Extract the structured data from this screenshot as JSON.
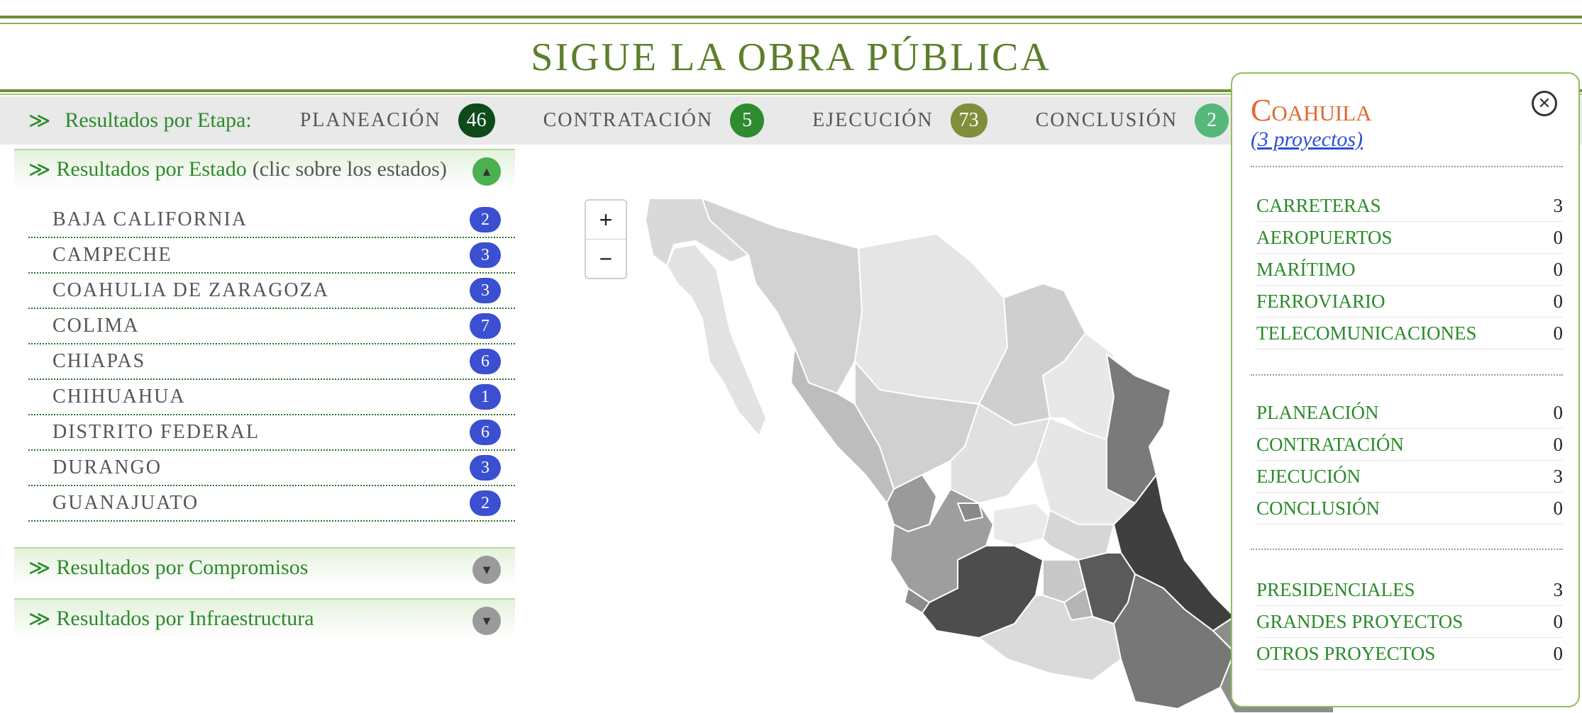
{
  "header": {
    "title": "Sigue la Obra Pública"
  },
  "stages": {
    "arrow": "≫",
    "title": "Resultados por Etapa:",
    "items": [
      {
        "label": "Planeación",
        "count": "46",
        "color": "#0e4a1a"
      },
      {
        "label": "Contratación",
        "count": "5",
        "color": "#2e8b2e"
      },
      {
        "label": "Ejecución",
        "count": "73",
        "color": "#7f8f3c"
      },
      {
        "label": "Conclusión",
        "count": "2",
        "color": "#55b77a"
      }
    ]
  },
  "left_panel": {
    "by_state": {
      "arrow": "≫",
      "title": "Resultados por Estado",
      "hint": "(clic sobre los estados)",
      "states": [
        {
          "name": "Baja California",
          "count": "2"
        },
        {
          "name": "Campeche",
          "count": "3"
        },
        {
          "name": "Coahulia de Zaragoza",
          "count": "3"
        },
        {
          "name": "Colima",
          "count": "7"
        },
        {
          "name": "Chiapas",
          "count": "6"
        },
        {
          "name": "Chihuahua",
          "count": "1"
        },
        {
          "name": "Distrito Federal",
          "count": "6"
        },
        {
          "name": "Durango",
          "count": "3"
        },
        {
          "name": "Guanajuato",
          "count": "2"
        }
      ]
    },
    "by_commitments": {
      "arrow": "≫",
      "title": "Resultados por Compromisos"
    },
    "by_infrastructure": {
      "arrow": "≫",
      "title": "Resultados por Infraestructura"
    }
  },
  "map_controls": {
    "zoom_in": "+",
    "zoom_out": "−"
  },
  "popup": {
    "title": "Coahuila",
    "link": "(3 proyectos)",
    "close_symbol": "✕",
    "sectors": [
      {
        "label": "Carreteras",
        "value": "3"
      },
      {
        "label": "Aeropuertos",
        "value": "0"
      },
      {
        "label": "Marítimo",
        "value": "0"
      },
      {
        "label": "Ferroviario",
        "value": "0"
      },
      {
        "label": "Telecomunicaciones",
        "value": "0"
      }
    ],
    "stages": [
      {
        "label": "Planeación",
        "value": "0"
      },
      {
        "label": "Contratación",
        "value": "0"
      },
      {
        "label": "Ejecución",
        "value": "3"
      },
      {
        "label": "Conclusión",
        "value": "0"
      }
    ],
    "types": [
      {
        "label": "Presidenciales",
        "value": "3"
      },
      {
        "label": "Grandes Proyectos",
        "value": "0"
      },
      {
        "label": "Otros Proyectos",
        "value": "0"
      }
    ]
  }
}
